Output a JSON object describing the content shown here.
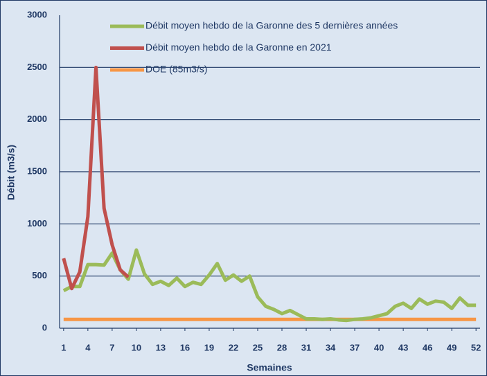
{
  "chart_data": {
    "type": "line",
    "x_label": "Semaines",
    "y_label": "Débit (m3/s)",
    "x": [
      1,
      2,
      3,
      4,
      5,
      6,
      7,
      8,
      9,
      10,
      11,
      12,
      13,
      14,
      15,
      16,
      17,
      18,
      19,
      20,
      21,
      22,
      23,
      24,
      25,
      26,
      27,
      28,
      29,
      30,
      31,
      32,
      33,
      34,
      35,
      36,
      37,
      38,
      39,
      40,
      41,
      42,
      43,
      44,
      45,
      46,
      47,
      48,
      49,
      50,
      51,
      52
    ],
    "xlim": [
      0.5,
      52.5
    ],
    "xticks": [
      1,
      4,
      7,
      10,
      13,
      16,
      19,
      22,
      25,
      28,
      31,
      34,
      37,
      40,
      43,
      46,
      49,
      52
    ],
    "ylim": [
      0,
      3000
    ],
    "yticks": [
      0,
      500,
      1000,
      1500,
      2000,
      2500,
      3000
    ],
    "grid": true,
    "series": [
      {
        "name": "Débit moyen hebdo de la Garonne des 5 dernières années",
        "color": "#9bbb59",
        "values": [
          360,
          400,
          400,
          610,
          610,
          605,
          720,
          560,
          470,
          750,
          520,
          420,
          450,
          410,
          480,
          400,
          440,
          420,
          510,
          620,
          460,
          510,
          450,
          500,
          300,
          210,
          180,
          140,
          170,
          130,
          90,
          90,
          85,
          90,
          80,
          75,
          85,
          90,
          100,
          120,
          140,
          210,
          240,
          190,
          280,
          230,
          260,
          250,
          190,
          290,
          220,
          220
        ]
      },
      {
        "name": "Débit moyen hebdo de la Garonne en 2021",
        "color": "#c0504d",
        "values": [
          670,
          380,
          540,
          1070,
          2500,
          1150,
          800,
          560,
          490,
          null,
          null,
          null,
          null,
          null,
          null,
          null,
          null,
          null,
          null,
          null,
          null,
          null,
          null,
          null,
          null,
          null,
          null,
          null,
          null,
          null,
          null,
          null,
          null,
          null,
          null,
          null,
          null,
          null,
          null,
          null,
          null,
          null,
          null,
          null,
          null,
          null,
          null,
          null,
          null,
          null,
          null,
          null
        ]
      },
      {
        "name": "DOE (85m3/s)",
        "color": "#f79646",
        "values": [
          85,
          85,
          85,
          85,
          85,
          85,
          85,
          85,
          85,
          85,
          85,
          85,
          85,
          85,
          85,
          85,
          85,
          85,
          85,
          85,
          85,
          85,
          85,
          85,
          85,
          85,
          85,
          85,
          85,
          85,
          85,
          85,
          85,
          85,
          85,
          85,
          85,
          85,
          85,
          85,
          85,
          85,
          85,
          85,
          85,
          85,
          85,
          85,
          85,
          85,
          85,
          85
        ]
      }
    ]
  }
}
